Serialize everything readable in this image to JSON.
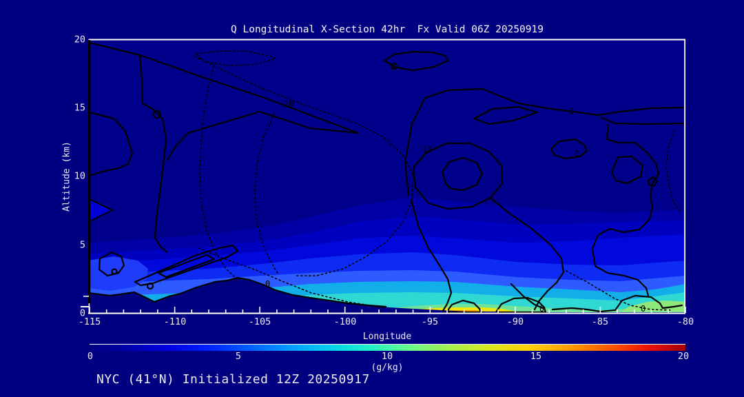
{
  "window": {
    "background": "#000080"
  },
  "title": "Q Longitudinal X-Section 42hr  Fx Valid 06Z 20250919",
  "footer": "NYC (41°N) Initialized 12Z 20250917",
  "plot": {
    "xaxis": {
      "label": "Longitude",
      "min": -115,
      "max": -80,
      "major_step": 5,
      "minor_step": 1,
      "tick_labels": [
        "-115",
        "-110",
        "-105",
        "-100",
        "-95",
        "-90",
        "-85",
        "-80"
      ]
    },
    "yaxis": {
      "label": "Altitude (km)",
      "min": 0,
      "max": 20,
      "major_step": 5,
      "tick_labels": [
        "20",
        "15",
        "10",
        "5",
        "0"
      ]
    },
    "contour_labels": [
      {
        "text": "0"
      },
      {
        "text": "10"
      },
      {
        "text": "10"
      },
      {
        "text": "0"
      },
      {
        "text": "0"
      },
      {
        "text": "0"
      },
      {
        "text": "0"
      }
    ]
  },
  "colorbar": {
    "min": 0,
    "max": 20,
    "units": "(g/kg)",
    "colormap": "jet",
    "tick_labels": [
      "0",
      "5",
      "10",
      "15",
      "20"
    ]
  },
  "chart_data": {
    "type": "heatmap",
    "title": "Q Longitudinal X-Section 42hr  Fx Valid 06Z 20250919",
    "xlabel": "Longitude",
    "ylabel": "Altitude (km)",
    "xlim": [
      -115,
      -80
    ],
    "ylim": [
      0,
      20
    ],
    "colorbar": {
      "units": "(g/kg)",
      "range": [
        0,
        20
      ],
      "colormap": "jet"
    },
    "x": [
      -115,
      -110,
      -105,
      -100,
      -95,
      -90,
      -85,
      -80
    ],
    "surface_q_g_per_kg": [
      2,
      2.5,
      3.5,
      7,
      14,
      11,
      8,
      7
    ],
    "q_at_5km_g_per_kg": [
      1,
      1.5,
      2,
      3,
      3,
      2.5,
      2,
      2
    ],
    "q_above_10km_g_per_kg": [
      0,
      0,
      0,
      0,
      0,
      0,
      0,
      0
    ],
    "terrain_height_km": [
      1.5,
      1.3,
      2.4,
      1.7,
      0.5,
      0.15,
      0.1,
      0.1
    ],
    "overlay_contours": {
      "labels_seen": [
        "0",
        "10"
      ],
      "line_styles": [
        "solid",
        "dotted"
      ]
    },
    "station": "NYC (41°N)",
    "initialized": "12Z 20250917",
    "forecast_hour": "42hr",
    "valid": "06Z 20250919"
  }
}
